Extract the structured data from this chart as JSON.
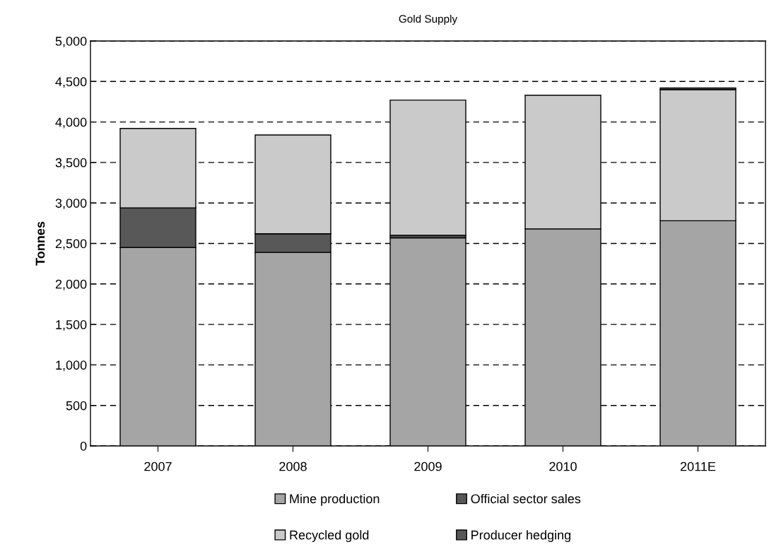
{
  "chart_data": {
    "type": "bar",
    "title": "Gold Supply",
    "ylabel": "Tonnes",
    "stacked": true,
    "categories": [
      "2007",
      "2008",
      "2009",
      "2010",
      "2011E"
    ],
    "series": [
      {
        "name": "Mine production",
        "color": "#a5a5a5",
        "values": [
          2450,
          2390,
          2570,
          2680,
          2780
        ]
      },
      {
        "name": "Official sector sales",
        "color": "#585858",
        "values": [
          490,
          230,
          30,
          null,
          null
        ]
      },
      {
        "name": "Recycled gold",
        "color": "#cacaca",
        "values": [
          980,
          1220,
          1670,
          1650,
          1620
        ]
      },
      {
        "name": "Producer hedging",
        "color": "#585858",
        "values": [
          null,
          null,
          null,
          null,
          20
        ]
      }
    ],
    "ylim": [
      0,
      5000
    ],
    "yticks": [
      {
        "value": 0,
        "label": "0"
      },
      {
        "value": 500,
        "label": "500"
      },
      {
        "value": 1000,
        "label": "1,000"
      },
      {
        "value": 1500,
        "label": "1,500"
      },
      {
        "value": 2000,
        "label": "2,000"
      },
      {
        "value": 2500,
        "label": "2,500"
      },
      {
        "value": 3000,
        "label": "3,000"
      },
      {
        "value": 3500,
        "label": "3,500"
      },
      {
        "value": 4000,
        "label": "4,000"
      },
      {
        "value": 4500,
        "label": "4,500"
      },
      {
        "value": 5000,
        "label": "5,000"
      }
    ],
    "grid": "y",
    "legend": "bottom"
  }
}
